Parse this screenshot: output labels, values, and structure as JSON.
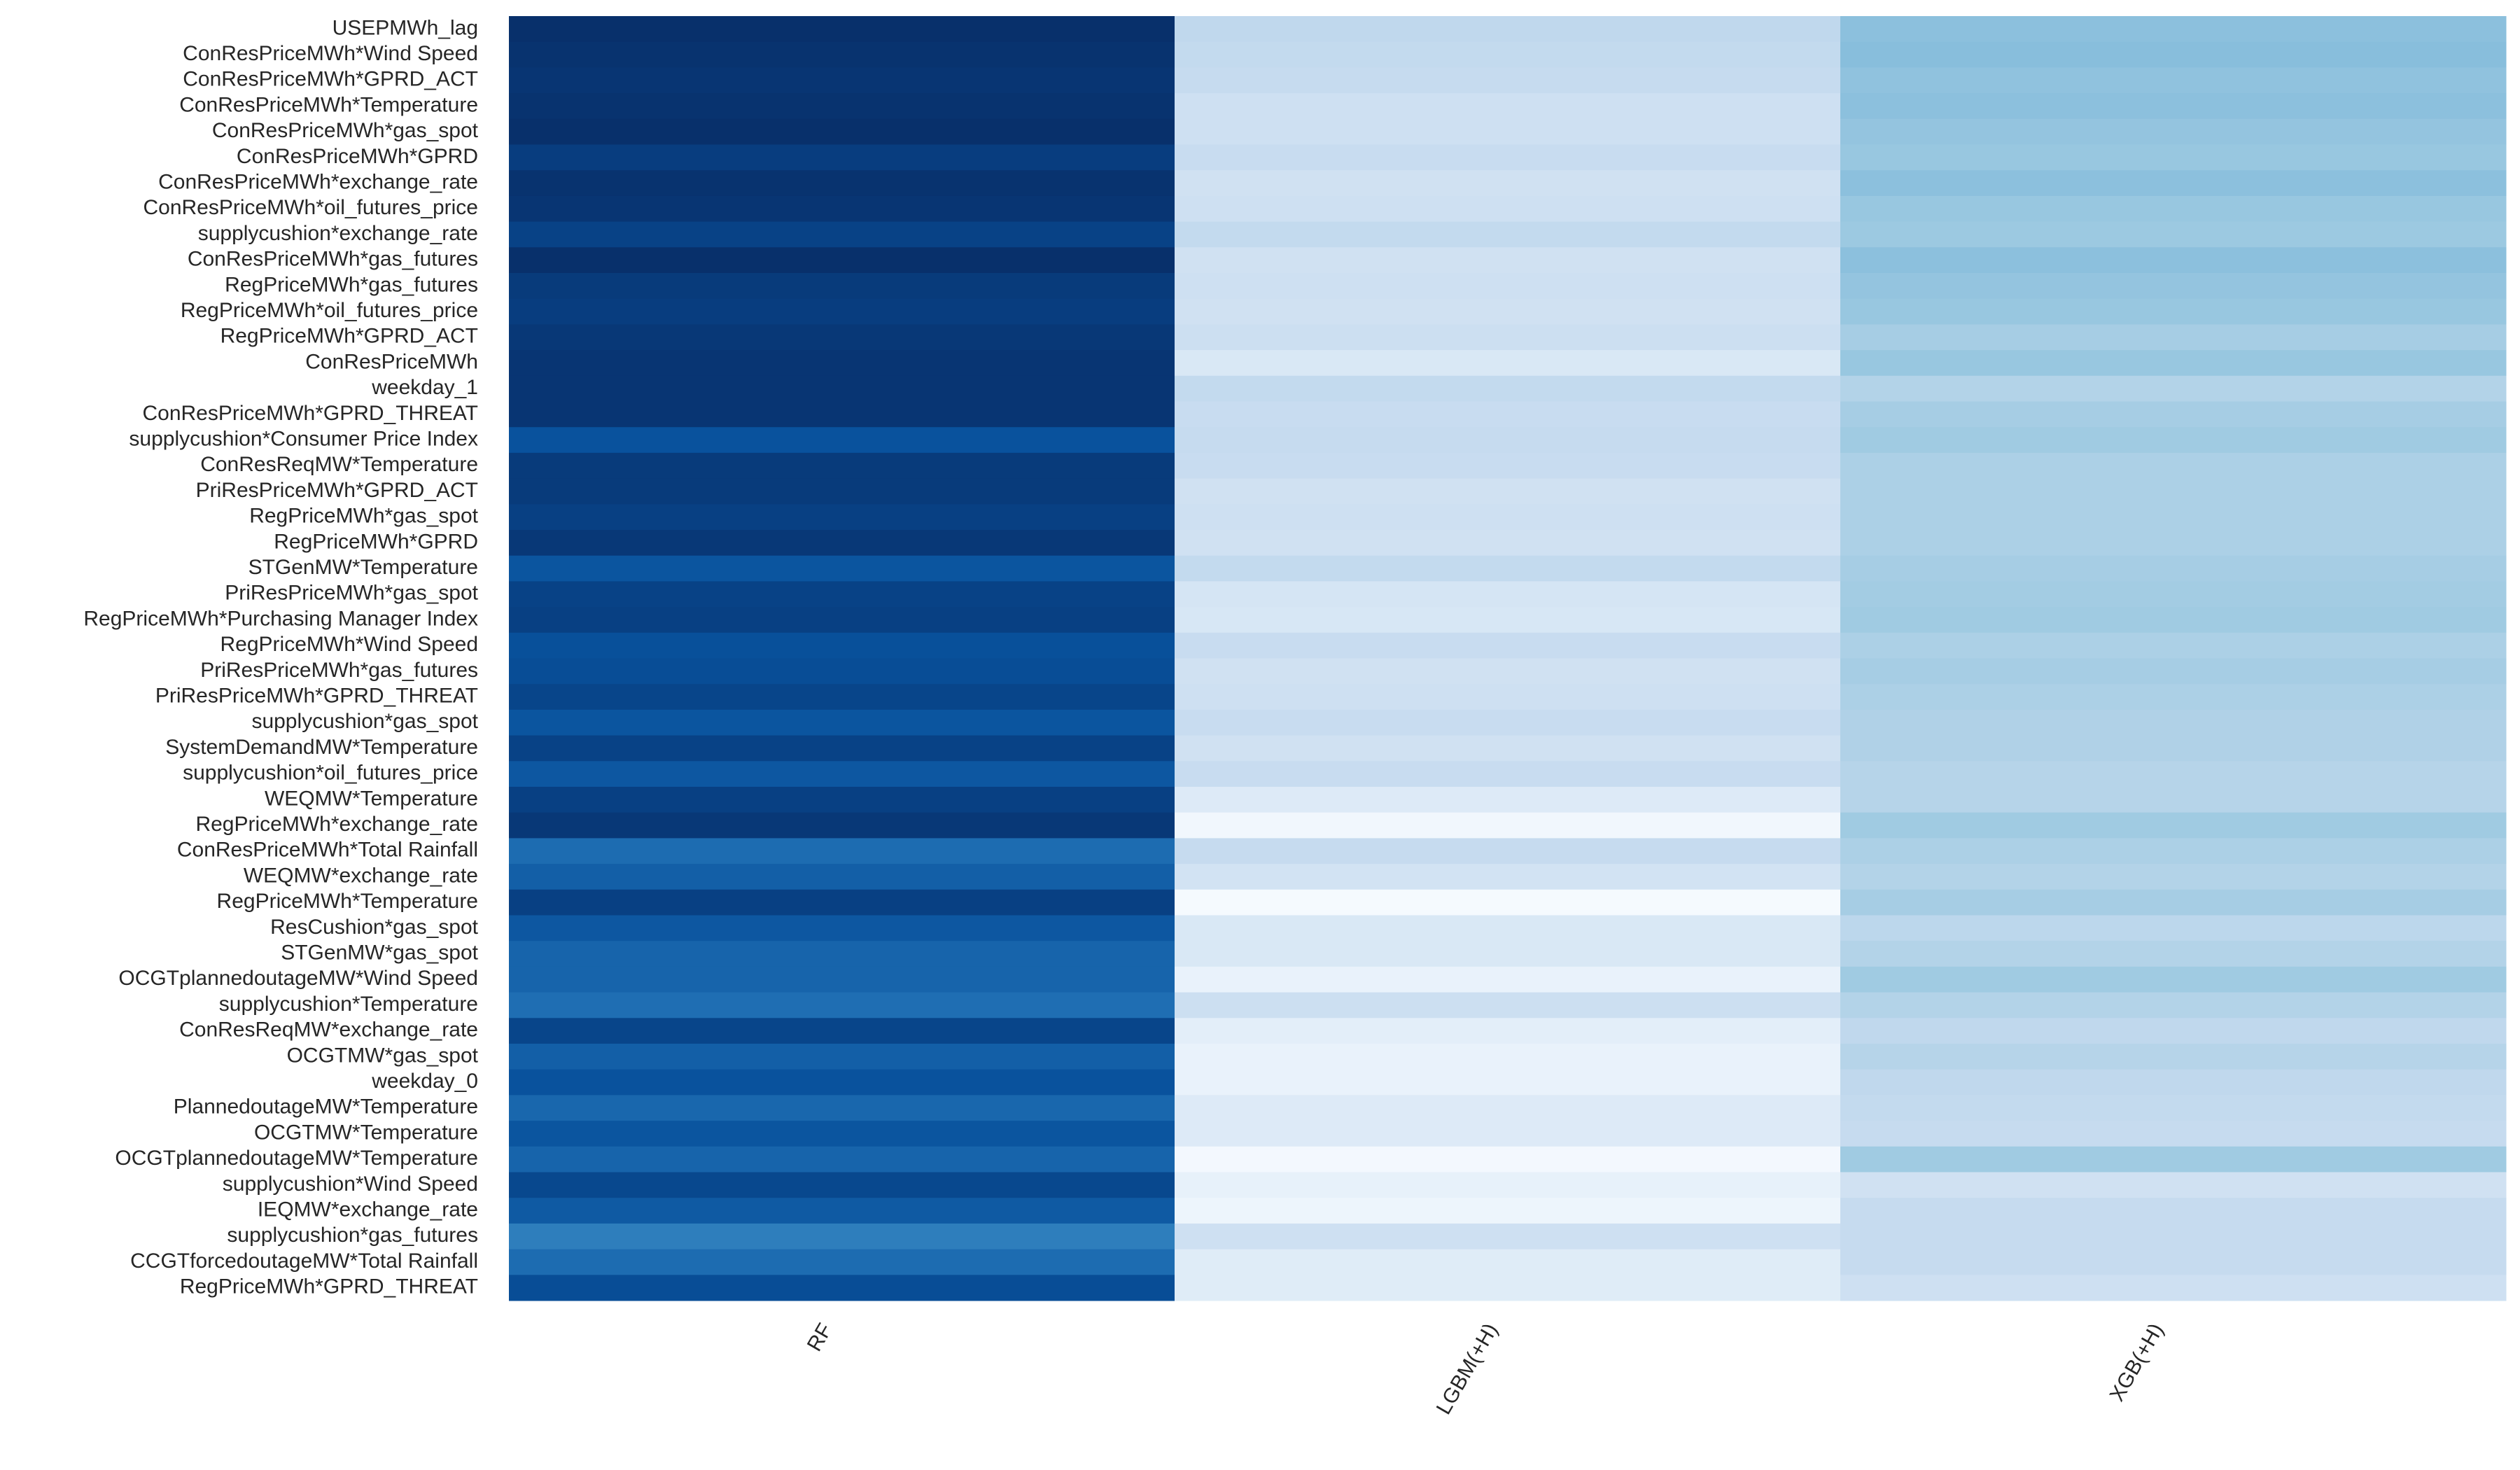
{
  "chart_data": {
    "type": "heatmap",
    "colormap": "Blues",
    "vlim": [
      0,
      1
    ],
    "categories": [
      "USEPMWh_lag",
      "ConResPriceMWh*Wind Speed",
      "ConResPriceMWh*GPRD_ACT",
      "ConResPriceMWh*Temperature",
      "ConResPriceMWh*gas_spot",
      "ConResPriceMWh*GPRD",
      "ConResPriceMWh*exchange_rate",
      "ConResPriceMWh*oil_futures_price",
      "supplycushion*exchange_rate",
      "ConResPriceMWh*gas_futures",
      "RegPriceMWh*gas_futures",
      "RegPriceMWh*oil_futures_price",
      "RegPriceMWh*GPRD_ACT",
      "ConResPriceMWh",
      "weekday_1",
      "ConResPriceMWh*GPRD_THREAT",
      "supplycushion*Consumer Price Index",
      "ConResReqMW*Temperature",
      "PriResPriceMWh*GPRD_ACT",
      "RegPriceMWh*gas_spot",
      "RegPriceMWh*GPRD",
      "STGenMW*Temperature",
      "PriResPriceMWh*gas_spot",
      "RegPriceMWh*Purchasing Manager Index",
      "RegPriceMWh*Wind Speed",
      "PriResPriceMWh*gas_futures",
      "PriResPriceMWh*GPRD_THREAT",
      "supplycushion*gas_spot",
      "SystemDemandMW*Temperature",
      "supplycushion*oil_futures_price",
      "WEQMW*Temperature",
      "RegPriceMWh*exchange_rate",
      "ConResPriceMWh*Total Rainfall",
      "WEQMW*exchange_rate",
      "RegPriceMWh*Temperature",
      "ResCushion*gas_spot",
      "STGenMW*gas_spot",
      "OCGTplannedoutageMW*Wind Speed",
      "supplycushion*Temperature",
      "ConResReqMW*exchange_rate",
      "OCGTMW*gas_spot",
      "weekday_0",
      "PlannedoutageMW*Temperature",
      "OCGTMW*Temperature",
      "OCGTplannedoutageMW*Temperature",
      "supplycushion*Wind Speed",
      "IEQMW*exchange_rate",
      "supplycushion*gas_futures",
      "CCGTforcedoutageMW*Total Rainfall",
      "RegPriceMWh*GPRD_THREAT"
    ],
    "series": [
      {
        "name": "RF",
        "values": [
          1.0,
          0.99,
          0.98,
          0.99,
          1.0,
          0.95,
          0.99,
          0.98,
          0.93,
          1.0,
          0.96,
          0.95,
          0.97,
          0.98,
          0.98,
          0.98,
          0.87,
          0.96,
          0.96,
          0.94,
          0.97,
          0.86,
          0.93,
          0.94,
          0.88,
          0.89,
          0.92,
          0.86,
          0.93,
          0.85,
          0.94,
          0.97,
          0.77,
          0.82,
          0.94,
          0.85,
          0.8,
          0.8,
          0.76,
          0.92,
          0.82,
          0.87,
          0.79,
          0.86,
          0.8,
          0.91,
          0.84,
          0.7,
          0.77,
          0.89
        ]
      },
      {
        "name": "LGBM(+H)",
        "values": [
          0.27,
          0.26,
          0.25,
          0.21,
          0.21,
          0.24,
          0.2,
          0.21,
          0.26,
          0.2,
          0.21,
          0.2,
          0.22,
          0.15,
          0.26,
          0.24,
          0.25,
          0.24,
          0.2,
          0.21,
          0.2,
          0.26,
          0.17,
          0.16,
          0.24,
          0.2,
          0.21,
          0.24,
          0.2,
          0.24,
          0.13,
          0.03,
          0.25,
          0.19,
          0.01,
          0.15,
          0.15,
          0.07,
          0.22,
          0.1,
          0.07,
          0.07,
          0.13,
          0.13,
          0.02,
          0.08,
          0.05,
          0.21,
          0.12,
          0.12
        ]
      },
      {
        "name": "XGB(+H)",
        "values": [
          0.42,
          0.43,
          0.41,
          0.42,
          0.4,
          0.39,
          0.42,
          0.39,
          0.38,
          0.42,
          0.4,
          0.39,
          0.35,
          0.39,
          0.31,
          0.35,
          0.37,
          0.33,
          0.33,
          0.33,
          0.33,
          0.35,
          0.36,
          0.37,
          0.33,
          0.35,
          0.33,
          0.32,
          0.32,
          0.3,
          0.3,
          0.37,
          0.33,
          0.31,
          0.35,
          0.28,
          0.31,
          0.37,
          0.31,
          0.27,
          0.3,
          0.27,
          0.26,
          0.25,
          0.37,
          0.2,
          0.25,
          0.25,
          0.25,
          0.21
        ]
      }
    ]
  }
}
